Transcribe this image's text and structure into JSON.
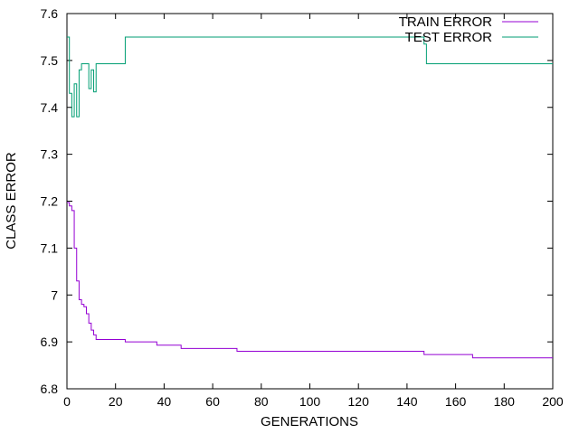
{
  "chart_data": {
    "type": "line",
    "title": "",
    "xlabel": "GENERATIONS",
    "ylabel": "CLASS ERROR",
    "xlim": [
      0,
      200
    ],
    "ylim": [
      6.8,
      7.6
    ],
    "x_ticks": [
      0,
      20,
      40,
      60,
      80,
      100,
      120,
      140,
      160,
      180,
      200
    ],
    "y_ticks": [
      6.8,
      6.9,
      7.0,
      7.1,
      7.2,
      7.3,
      7.4,
      7.5,
      7.6
    ],
    "x_tick_labels": [
      "0",
      "20",
      "40",
      "60",
      "80",
      "100",
      "120",
      "140",
      "160",
      "180",
      "200"
    ],
    "y_tick_labels": [
      "6.8",
      "6.9",
      "7",
      "7.1",
      "7.2",
      "7.3",
      "7.4",
      "7.5",
      "7.6"
    ],
    "grid": false,
    "legend_position": "top-right",
    "series": [
      {
        "name": "TRAIN ERROR",
        "color": "#9400d3",
        "step": true,
        "x": [
          0,
          1,
          2,
          3,
          4,
          5,
          6,
          7,
          8,
          9,
          10,
          11,
          12,
          24,
          37,
          47,
          70,
          147,
          167,
          200
        ],
        "y": [
          7.197,
          7.19,
          7.18,
          7.1,
          7.03,
          6.99,
          6.98,
          6.975,
          6.96,
          6.94,
          6.925,
          6.915,
          6.905,
          6.9,
          6.893,
          6.886,
          6.88,
          6.873,
          6.866,
          6.866
        ]
      },
      {
        "name": "TEST ERROR",
        "color": "#009e73",
        "step": true,
        "x": [
          0,
          1,
          2,
          3,
          4,
          5,
          6,
          9,
          10,
          11,
          12,
          13,
          24,
          146,
          147,
          148,
          200
        ],
        "y": [
          7.55,
          7.43,
          7.38,
          7.45,
          7.38,
          7.48,
          7.493,
          7.44,
          7.48,
          7.433,
          7.493,
          7.493,
          7.55,
          7.55,
          7.535,
          7.493,
          7.493
        ]
      }
    ]
  }
}
